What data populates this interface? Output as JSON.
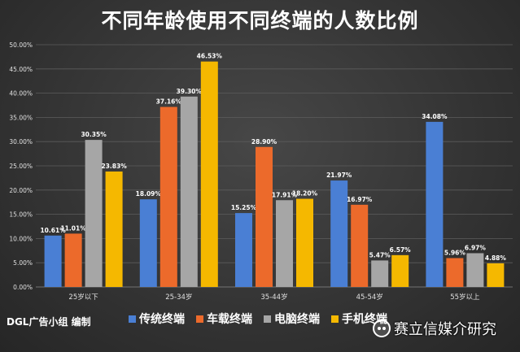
{
  "chart_data": {
    "type": "bar",
    "title": "不同年龄使用不同终端的人数比例",
    "categories": [
      "25岁以下",
      "25-34岁",
      "35-44岁",
      "45-54岁",
      "55岁以上"
    ],
    "series": [
      {
        "name": "传统终端",
        "color": "#4a7fd4",
        "values": [
          10.61,
          18.09,
          15.25,
          21.97,
          34.08
        ],
        "labels": [
          "10.61%",
          "18.09%",
          "15.25%",
          "21.97%",
          "34.08%"
        ]
      },
      {
        "name": "车载终端",
        "color": "#ec6a2b",
        "values": [
          11.01,
          37.16,
          28.9,
          16.97,
          5.96
        ],
        "labels": [
          "11.01%",
          "37.16%",
          "28.90%",
          "16.97%",
          "5.96%"
        ]
      },
      {
        "name": "电脑终端",
        "color": "#a6a6a6",
        "values": [
          30.35,
          39.3,
          17.91,
          5.47,
          6.97
        ],
        "labels": [
          "30.35%",
          "39.30%",
          "17.91%",
          "5.47%",
          "6.97%"
        ]
      },
      {
        "name": "手机终端",
        "color": "#f5b800",
        "values": [
          23.83,
          46.53,
          18.2,
          6.57,
          4.88
        ],
        "labels": [
          "23.83%",
          "46.53%",
          "18.20%",
          "6.57%",
          "4.88%"
        ]
      }
    ],
    "ylim": [
      0,
      50
    ],
    "yticks": [
      "0.00%",
      "5.00%",
      "10.00%",
      "15.00%",
      "20.00%",
      "25.00%",
      "30.00%",
      "35.00%",
      "40.00%",
      "45.00%",
      "50.00%"
    ],
    "grid": true,
    "legend_position": "bottom"
  },
  "footer": {
    "credit": "DGL广告小组 编制"
  },
  "watermark": {
    "text": "赛立信媒介研究",
    "icon": "wechat-icon"
  }
}
